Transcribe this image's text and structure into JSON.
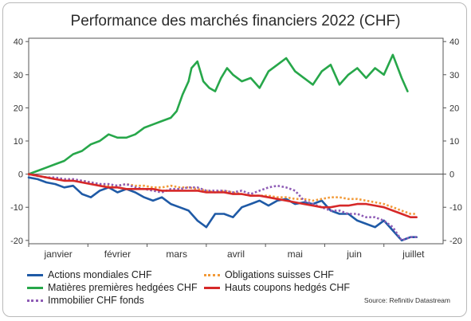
{
  "title": "Performance des marchés financiers 2022 (CHF)",
  "source": "Source: Refinitiv Datastream",
  "chart_data": {
    "type": "line",
    "title": "Performance des marchés financiers 2022 (CHF)",
    "ylim": [
      -21,
      41
    ],
    "yticks": [
      40,
      30,
      20,
      10,
      0,
      -10,
      -20
    ],
    "ytick_labels": [
      "40",
      "30",
      "20",
      "10",
      "0",
      "-10",
      "-20"
    ],
    "months": [
      "janvier",
      "février",
      "mars",
      "avril",
      "mai",
      "juin",
      "juillet"
    ],
    "x_unit": "trading day index (0 = start of January)",
    "xlim": [
      0,
      140
    ],
    "grid": false,
    "legend": "bottom",
    "series": [
      {
        "name": "Actions mondiales CHF",
        "color": "#1f5aa6",
        "style": "solid",
        "x": [
          0,
          3,
          6,
          9,
          12,
          15,
          18,
          21,
          24,
          27,
          30,
          33,
          36,
          39,
          42,
          45,
          48,
          51,
          54,
          57,
          60,
          63,
          66,
          69,
          72,
          75,
          78,
          81,
          84,
          87,
          90,
          93,
          96,
          99,
          102,
          105,
          108,
          111,
          114,
          117,
          120,
          123,
          126,
          129,
          131
        ],
        "values": [
          -1,
          -1.5,
          -2.5,
          -3,
          -4,
          -3.5,
          -6,
          -7,
          -5,
          -4,
          -5.5,
          -4.5,
          -5.5,
          -7,
          -8,
          -7,
          -9,
          -10,
          -11,
          -14,
          -16,
          -12,
          -12,
          -13,
          -10,
          -9,
          -8,
          -9.5,
          -8,
          -7.5,
          -9,
          -8.5,
          -9,
          -8,
          -11,
          -12,
          -12,
          -14,
          -15,
          -16,
          -14,
          -17,
          -20,
          -19,
          -19
        ]
      },
      {
        "name": "Matières premières hedgées CHF",
        "color": "#27a74a",
        "style": "solid",
        "x": [
          0,
          3,
          6,
          9,
          12,
          15,
          18,
          21,
          24,
          27,
          30,
          33,
          36,
          39,
          42,
          45,
          48,
          50,
          52,
          54,
          55,
          57,
          59,
          61,
          63,
          65,
          67,
          69,
          72,
          75,
          78,
          81,
          84,
          87,
          90,
          93,
          96,
          99,
          102,
          105,
          108,
          111,
          114,
          117,
          120,
          123,
          126,
          128
        ],
        "values": [
          0,
          1,
          2,
          3,
          4,
          6,
          7,
          9,
          10,
          12,
          11,
          11,
          12,
          14,
          15,
          16,
          17,
          19,
          24,
          28,
          32,
          34,
          28,
          26,
          25,
          29,
          32,
          30,
          28,
          29,
          26,
          31,
          33,
          35,
          31,
          29,
          27,
          31,
          33,
          27,
          30,
          32,
          29,
          32,
          30,
          36,
          29,
          25
        ]
      },
      {
        "name": "Immobilier CHF fonds",
        "color": "#8e5bb5",
        "style": "dotted",
        "x": [
          0,
          3,
          6,
          9,
          12,
          15,
          18,
          21,
          24,
          27,
          30,
          33,
          36,
          39,
          42,
          45,
          48,
          51,
          54,
          57,
          60,
          63,
          66,
          69,
          72,
          75,
          78,
          81,
          84,
          87,
          90,
          93,
          96,
          99,
          102,
          105,
          108,
          111,
          114,
          117,
          120,
          123,
          126,
          129,
          131
        ],
        "values": [
          0,
          -0.5,
          -1,
          -1,
          -1.5,
          -1.5,
          -2,
          -2.5,
          -3,
          -3,
          -3.5,
          -3,
          -4,
          -4.5,
          -5,
          -5.5,
          -4.5,
          -4.5,
          -4,
          -4,
          -5,
          -5,
          -5,
          -5.5,
          -5,
          -6,
          -5,
          -4,
          -3.5,
          -4,
          -5,
          -8,
          -9,
          -10,
          -11,
          -11,
          -12,
          -12,
          -13,
          -13,
          -14,
          -16,
          -20,
          -19,
          -19
        ]
      },
      {
        "name": "Obligations suisses CHF",
        "color": "#f29a38",
        "style": "dotted",
        "x": [
          0,
          3,
          6,
          9,
          12,
          15,
          18,
          21,
          24,
          27,
          30,
          33,
          36,
          39,
          42,
          45,
          48,
          51,
          54,
          57,
          60,
          63,
          66,
          69,
          72,
          75,
          78,
          81,
          84,
          87,
          90,
          93,
          96,
          99,
          102,
          105,
          108,
          111,
          114,
          117,
          120,
          123,
          126,
          129,
          131
        ],
        "values": [
          0,
          -0.5,
          -1,
          -1.5,
          -1.5,
          -2,
          -2,
          -2.5,
          -3,
          -3.5,
          -3.5,
          -3,
          -3.5,
          -3.5,
          -4,
          -4,
          -3.5,
          -4,
          -4,
          -4.5,
          -5,
          -5.5,
          -5,
          -5.5,
          -6,
          -6.5,
          -6.5,
          -6.5,
          -7,
          -7,
          -7.5,
          -7.5,
          -8,
          -7.5,
          -7,
          -7,
          -7.5,
          -7.5,
          -8,
          -8.5,
          -9,
          -10,
          -11,
          -12,
          -12
        ]
      },
      {
        "name": "Hauts coupons hedgés CHF",
        "color": "#d62828",
        "style": "solid",
        "x": [
          0,
          3,
          6,
          9,
          12,
          15,
          18,
          21,
          24,
          27,
          30,
          33,
          36,
          39,
          42,
          45,
          48,
          51,
          54,
          57,
          60,
          63,
          66,
          69,
          72,
          75,
          78,
          81,
          84,
          87,
          90,
          93,
          96,
          99,
          102,
          105,
          108,
          111,
          114,
          117,
          120,
          123,
          126,
          129,
          131
        ],
        "values": [
          0,
          -0.5,
          -1,
          -1.5,
          -2,
          -2,
          -2.5,
          -3,
          -3.5,
          -4,
          -4,
          -4.5,
          -4.5,
          -4.5,
          -4.5,
          -5,
          -5,
          -5,
          -5,
          -5,
          -5.5,
          -5.5,
          -5.5,
          -6,
          -6,
          -6.5,
          -6.5,
          -7,
          -7.5,
          -8,
          -8.5,
          -9,
          -9.5,
          -10,
          -10,
          -9.5,
          -9.5,
          -9,
          -9,
          -9.5,
          -10,
          -11,
          -12,
          -13,
          -13
        ]
      }
    ]
  }
}
